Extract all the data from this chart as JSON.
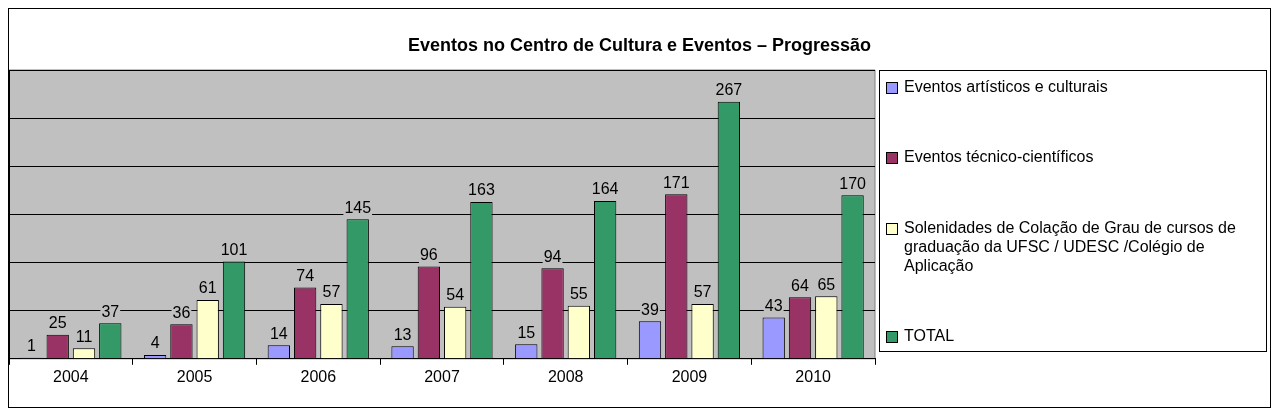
{
  "chart_data": {
    "type": "bar",
    "title": "Eventos no Centro de Cultura e Eventos – Progressão",
    "categories": [
      "2004",
      "2005",
      "2006",
      "2007",
      "2008",
      "2009",
      "2010"
    ],
    "series": [
      {
        "name": "Eventos artísticos e culturais",
        "color": "#9999ff",
        "values": [
          1,
          4,
          14,
          13,
          15,
          39,
          43
        ]
      },
      {
        "name": "Eventos técnico-científicos",
        "color": "#993366",
        "values": [
          25,
          36,
          74,
          96,
          94,
          171,
          64
        ]
      },
      {
        "name": "Solenidades de Colação de Grau de cursos de graduação da UFSC / UDESC /Colégio de Aplicação",
        "color": "#ffffcc",
        "values": [
          11,
          61,
          57,
          54,
          55,
          57,
          65
        ]
      },
      {
        "name": "TOTAL",
        "color": "#339966",
        "values": [
          37,
          101,
          145,
          163,
          164,
          267,
          170
        ]
      }
    ],
    "ylim": [
      0,
      300
    ],
    "yticks": [
      {
        "value": 0,
        "label": null
      },
      {
        "value": 50,
        "label": null
      },
      {
        "value": 100,
        "label": null
      },
      {
        "value": 150,
        "label": null
      },
      {
        "value": 200,
        "label": null
      },
      {
        "value": 250,
        "label": null
      },
      {
        "value": 300,
        "label": null
      }
    ],
    "tick_labels": "x",
    "grid": "y",
    "legend": "right",
    "data_labels": true
  }
}
